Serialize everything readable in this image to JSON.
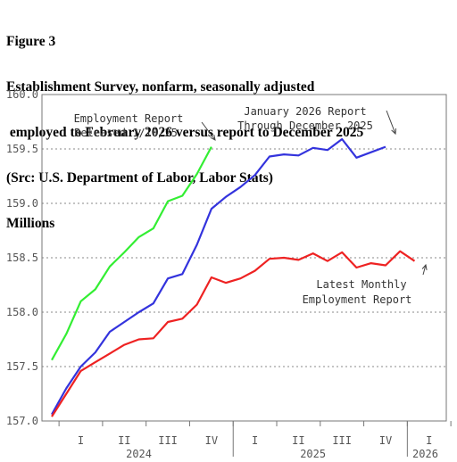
{
  "header": {
    "line1": "Figure 3",
    "line2": "Establishment Survey, nonfarm, seasonally adjusted",
    "line3": " employed to February 2026 versus report to December 2025",
    "line4": "(Src: U.S. Department of Labor, Labor Stats)",
    "line5": "Millions"
  },
  "chart_data": {
    "type": "line",
    "title": "Establishment Survey, nonfarm, seasonally adjusted employed to February 2026 versus report to December 2025",
    "ylabel": "Millions",
    "ylim": [
      157.0,
      160.0
    ],
    "yticks": [
      "157.0",
      "157.5",
      "158.0",
      "158.5",
      "159.0",
      "159.5",
      "160.0"
    ],
    "grid": "horizontal dotted",
    "x_quarters": [
      "I",
      "II",
      "III",
      "IV",
      "I",
      "II",
      "III",
      "IV",
      "I"
    ],
    "x_years": [
      "2024",
      "2025",
      "2026"
    ],
    "colors": {
      "green": "#33ee33",
      "blue": "#3333dd",
      "red": "#ee2222",
      "grid": "#888888",
      "axis": "#777777"
    },
    "series": [
      {
        "color": "green",
        "x": [
          "2023-12",
          "2024-01",
          "2024-02",
          "2024-03",
          "2024-04",
          "2024-05",
          "2024-06",
          "2024-07",
          "2024-08",
          "2024-09",
          "2024-10",
          "2024-11",
          "2024-12"
        ],
        "values": [
          157.56,
          157.8,
          158.1,
          158.21,
          158.42,
          158.55,
          158.69,
          158.77,
          159.02,
          159.07,
          159.27,
          159.52,
          null
        ]
      },
      {
        "color": "blue",
        "x": [
          "2023-12",
          "2024-01",
          "2024-02",
          "2024-03",
          "2024-04",
          "2024-05",
          "2024-06",
          "2024-07",
          "2024-08",
          "2024-09",
          "2024-10",
          "2024-11",
          "2024-12",
          "2025-01",
          "2025-02",
          "2025-03",
          "2025-04",
          "2025-05",
          "2025-06",
          "2025-07",
          "2025-08",
          "2025-09",
          "2025-10",
          "2025-11",
          "2025-12"
        ],
        "values": [
          157.06,
          157.3,
          157.5,
          157.63,
          157.82,
          157.91,
          158.0,
          158.08,
          158.31,
          158.35,
          158.62,
          158.95,
          159.06,
          159.15,
          159.26,
          159.43,
          159.45,
          159.44,
          159.51,
          159.49,
          159.59,
          159.42,
          159.47,
          159.52,
          null
        ]
      },
      {
        "color": "red",
        "x": [
          "2023-12",
          "2024-01",
          "2024-02",
          "2024-03",
          "2024-04",
          "2024-05",
          "2024-06",
          "2024-07",
          "2024-08",
          "2024-09",
          "2024-10",
          "2024-11",
          "2024-12",
          "2025-01",
          "2025-02",
          "2025-03",
          "2025-04",
          "2025-05",
          "2025-06",
          "2025-07",
          "2025-08",
          "2025-09",
          "2025-10",
          "2025-11",
          "2025-12",
          "2026-01",
          "2026-02"
        ],
        "values": [
          157.04,
          157.25,
          157.46,
          157.54,
          157.62,
          157.7,
          157.75,
          157.76,
          157.91,
          157.94,
          158.07,
          158.32,
          158.27,
          158.31,
          158.38,
          158.49,
          158.5,
          158.48,
          158.54,
          158.47,
          158.55,
          158.41,
          158.45,
          158.43,
          158.56,
          158.47,
          null
        ]
      }
    ],
    "annotations": {
      "green_line1": "Employment Report",
      "green_line2": "Released 1/10/25",
      "blue_line1": "January 2026 Report",
      "blue_line2": "Through December 2025",
      "red_line1": "Latest Monthly",
      "red_line2": "Employment Report"
    }
  }
}
